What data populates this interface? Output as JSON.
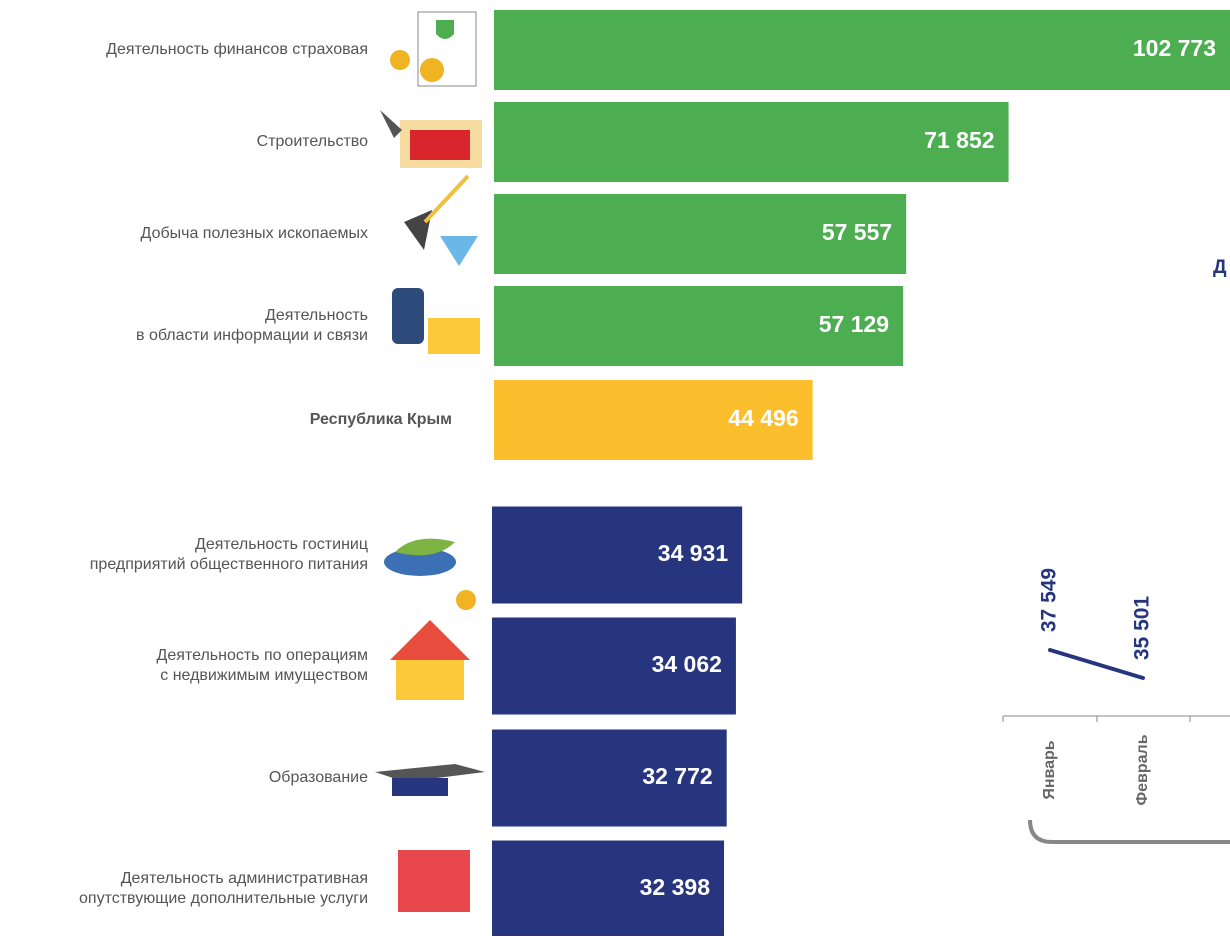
{
  "chart_data": [
    {
      "type": "hbar",
      "categories": [
        [
          "Деятельность финансов страховая"
        ],
        [
          "Строительство"
        ],
        [
          "Добыча полезных  ископаемых"
        ],
        [
          "Деятельность",
          "в области информации  и связи"
        ],
        [
          "Республика Крым"
        ],
        [
          "Деятельность гостиниц",
          "предприятий общественного питания"
        ],
        [
          "Деятельность по   операциям",
          "с недвижимым имуществом"
        ],
        [
          "Образование"
        ],
        [
          "Деятельность административная",
          "опутствующие дополнительные услуги"
        ]
      ],
      "values": [
        102773,
        71852,
        57557,
        57129,
        44496,
        34931,
        34062,
        32772,
        32398
      ],
      "value_labels": [
        "102 773",
        "71 852",
        "57 557",
        "57 129",
        "44 496",
        "34 931",
        "34 062",
        "32 772",
        "32 398"
      ],
      "colors": [
        "#4cae50",
        "#4cae50",
        "#4cae50",
        "#4cae50",
        "#fbbf2e",
        "#27357f",
        "#27357f",
        "#27357f",
        "#27357f"
      ]
    },
    {
      "type": "line",
      "title": "Д",
      "categories": [
        "Январь",
        "Февраль"
      ],
      "values": [
        37549,
        35501
      ],
      "value_labels": [
        "37 549",
        "35 501"
      ],
      "color": "#27357f"
    }
  ]
}
